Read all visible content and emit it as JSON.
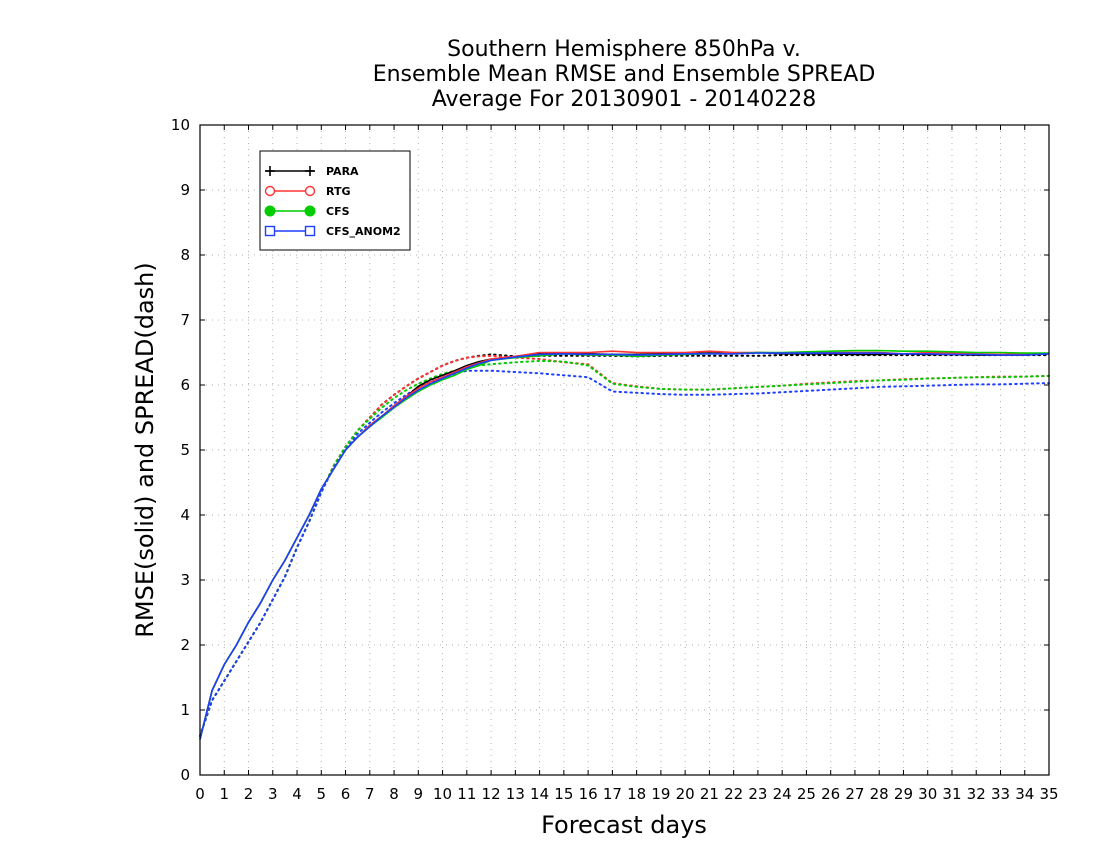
{
  "chart_data": {
    "type": "line",
    "title": [
      "Southern Hemisphere 850hPa v.",
      "Ensemble Mean RMSE and Ensemble SPREAD",
      "Average For 20130901 - 20140228"
    ],
    "xlabel": "Forecast days",
    "ylabel": "RMSE(solid) and SPREAD(dash)",
    "xlim": [
      0,
      35
    ],
    "ylim": [
      0,
      10
    ],
    "x_ticks": [
      0,
      1,
      2,
      3,
      4,
      5,
      6,
      7,
      8,
      9,
      10,
      11,
      12,
      13,
      14,
      15,
      16,
      17,
      18,
      19,
      20,
      21,
      22,
      23,
      24,
      25,
      26,
      27,
      28,
      29,
      30,
      31,
      32,
      33,
      34,
      35
    ],
    "y_ticks": [
      0,
      1,
      2,
      3,
      4,
      5,
      6,
      7,
      8,
      9,
      10
    ],
    "grid": true,
    "legend_position": "top-left",
    "series": [
      {
        "name": "PARA",
        "color": "#000000",
        "marker": "plus",
        "x": [
          0,
          0.5,
          1,
          1.5,
          2,
          2.5,
          3,
          3.5,
          4,
          4.5,
          5,
          5.5,
          6,
          6.5,
          7,
          7.5,
          8,
          8.5,
          9,
          9.5,
          10,
          10.5,
          11,
          11.5,
          12,
          13,
          14,
          15,
          16,
          17,
          18,
          19,
          20,
          21,
          22,
          23,
          24,
          25,
          26,
          27,
          28,
          29,
          30,
          31,
          32,
          33,
          34,
          35
        ],
        "rmse": [
          0.55,
          1.3,
          1.7,
          2.0,
          2.35,
          2.65,
          3.0,
          3.3,
          3.65,
          4.0,
          4.4,
          4.7,
          5.0,
          5.2,
          5.38,
          5.52,
          5.68,
          5.82,
          5.98,
          6.08,
          6.15,
          6.22,
          6.3,
          6.36,
          6.4,
          6.44,
          6.48,
          6.48,
          6.48,
          6.47,
          6.47,
          6.48,
          6.48,
          6.49,
          6.48,
          6.5,
          6.48,
          6.48,
          6.48,
          6.47,
          6.47,
          6.48,
          6.47,
          6.47,
          6.46,
          6.46,
          6.46,
          6.48
        ],
        "spread": [
          0.6,
          1.15,
          1.45,
          1.75,
          2.05,
          2.35,
          2.7,
          3.05,
          3.5,
          3.9,
          4.35,
          4.75,
          5.05,
          5.3,
          5.5,
          5.7,
          5.85,
          5.98,
          6.1,
          6.2,
          6.3,
          6.37,
          6.42,
          6.45,
          6.47,
          6.44,
          6.45,
          6.45,
          6.45,
          6.45,
          6.44,
          6.45,
          6.45,
          6.45,
          6.45,
          6.45,
          6.46,
          6.46,
          6.46,
          6.46,
          6.46,
          6.46,
          6.46,
          6.46,
          6.46,
          6.46,
          6.46,
          6.46
        ]
      },
      {
        "name": "RTG",
        "color": "#ff3333",
        "marker": "circle-open",
        "x": [
          0,
          0.5,
          1,
          1.5,
          2,
          2.5,
          3,
          3.5,
          4,
          4.5,
          5,
          5.5,
          6,
          6.5,
          7,
          7.5,
          8,
          8.5,
          9,
          9.5,
          10,
          10.5,
          11,
          11.5,
          12,
          13,
          14,
          15,
          16,
          17,
          18,
          19,
          20,
          21,
          22,
          23,
          24,
          25,
          26,
          27,
          28,
          29,
          30,
          31,
          32,
          33,
          34,
          35
        ],
        "rmse": [
          0.55,
          1.3,
          1.7,
          2.0,
          2.35,
          2.65,
          3.0,
          3.3,
          3.65,
          4.0,
          4.4,
          4.7,
          5.0,
          5.2,
          5.38,
          5.52,
          5.68,
          5.82,
          5.95,
          6.05,
          6.12,
          6.2,
          6.28,
          6.34,
          6.4,
          6.44,
          6.5,
          6.5,
          6.5,
          6.52,
          6.5,
          6.5,
          6.5,
          6.52,
          6.5,
          6.5,
          6.49,
          6.5,
          6.5,
          6.5,
          6.5,
          6.48,
          6.5,
          6.49,
          6.48,
          6.47,
          6.48,
          6.48
        ],
        "spread": [
          0.6,
          1.15,
          1.45,
          1.75,
          2.05,
          2.35,
          2.7,
          3.05,
          3.5,
          3.9,
          4.35,
          4.75,
          5.05,
          5.3,
          5.5,
          5.7,
          5.85,
          5.98,
          6.1,
          6.2,
          6.3,
          6.37,
          6.42,
          6.44,
          6.45,
          6.42,
          6.4,
          6.35,
          6.32,
          6.03,
          5.98,
          5.94,
          5.93,
          5.93,
          5.95,
          5.97,
          5.99,
          6.02,
          6.04,
          6.06,
          6.07,
          6.09,
          6.1,
          6.11,
          6.12,
          6.13,
          6.13,
          6.14
        ]
      },
      {
        "name": "CFS",
        "color": "#00cc00",
        "marker": "circle-filled",
        "x": [
          0,
          0.5,
          1,
          1.5,
          2,
          2.5,
          3,
          3.5,
          4,
          4.5,
          5,
          5.5,
          6,
          6.5,
          7,
          7.5,
          8,
          8.5,
          9,
          9.5,
          10,
          10.5,
          11,
          11.5,
          12,
          13,
          14,
          15,
          16,
          17,
          18,
          19,
          20,
          21,
          22,
          23,
          24,
          25,
          26,
          27,
          28,
          29,
          30,
          31,
          32,
          33,
          34,
          35
        ],
        "rmse": [
          0.55,
          1.3,
          1.7,
          2.0,
          2.35,
          2.65,
          3.0,
          3.3,
          3.65,
          4.0,
          4.4,
          4.7,
          5.0,
          5.2,
          5.36,
          5.5,
          5.65,
          5.78,
          5.9,
          6.0,
          6.08,
          6.15,
          6.24,
          6.3,
          6.38,
          6.42,
          6.45,
          6.48,
          6.46,
          6.46,
          6.44,
          6.46,
          6.47,
          6.48,
          6.48,
          6.5,
          6.5,
          6.51,
          6.52,
          6.53,
          6.53,
          6.52,
          6.52,
          6.51,
          6.5,
          6.5,
          6.49,
          6.49
        ],
        "spread": [
          0.6,
          1.15,
          1.45,
          1.75,
          2.05,
          2.35,
          2.7,
          3.05,
          3.5,
          3.9,
          4.35,
          4.75,
          5.05,
          5.3,
          5.48,
          5.65,
          5.8,
          5.92,
          6.02,
          6.1,
          6.17,
          6.22,
          6.28,
          6.3,
          6.32,
          6.35,
          6.37,
          6.36,
          6.3,
          6.02,
          5.97,
          5.94,
          5.93,
          5.93,
          5.95,
          5.97,
          5.99,
          6.01,
          6.03,
          6.05,
          6.07,
          6.08,
          6.1,
          6.11,
          6.12,
          6.12,
          6.13,
          6.14
        ]
      },
      {
        "name": "CFS_ANOM2",
        "color": "#1f3fff",
        "marker": "square-open",
        "x": [
          0,
          0.5,
          1,
          1.5,
          2,
          2.5,
          3,
          3.5,
          4,
          4.5,
          5,
          5.5,
          6,
          6.5,
          7,
          7.5,
          8,
          8.5,
          9,
          9.5,
          10,
          10.5,
          11,
          11.5,
          12,
          13,
          14,
          15,
          16,
          17,
          18,
          19,
          20,
          21,
          22,
          23,
          24,
          25,
          26,
          27,
          28,
          29,
          30,
          31,
          32,
          33,
          34,
          35
        ],
        "rmse": [
          0.55,
          1.3,
          1.7,
          2.0,
          2.35,
          2.65,
          3.0,
          3.3,
          3.65,
          4.0,
          4.4,
          4.7,
          5.0,
          5.2,
          5.36,
          5.52,
          5.66,
          5.8,
          5.92,
          6.02,
          6.1,
          6.18,
          6.26,
          6.33,
          6.38,
          6.43,
          6.47,
          6.48,
          6.47,
          6.47,
          6.46,
          6.47,
          6.48,
          6.48,
          6.48,
          6.49,
          6.49,
          6.49,
          6.49,
          6.49,
          6.49,
          6.48,
          6.48,
          6.47,
          6.47,
          6.46,
          6.46,
          6.48
        ],
        "spread": [
          0.6,
          1.15,
          1.45,
          1.75,
          2.05,
          2.35,
          2.7,
          3.05,
          3.5,
          3.9,
          4.35,
          4.72,
          5.0,
          5.25,
          5.42,
          5.58,
          5.72,
          5.85,
          5.96,
          6.05,
          6.12,
          6.17,
          6.22,
          6.22,
          6.22,
          6.2,
          6.18,
          6.15,
          6.12,
          5.9,
          5.88,
          5.86,
          5.85,
          5.85,
          5.86,
          5.87,
          5.89,
          5.91,
          5.93,
          5.95,
          5.97,
          5.98,
          5.99,
          6.0,
          6.01,
          6.01,
          6.02,
          6.03
        ]
      }
    ]
  }
}
